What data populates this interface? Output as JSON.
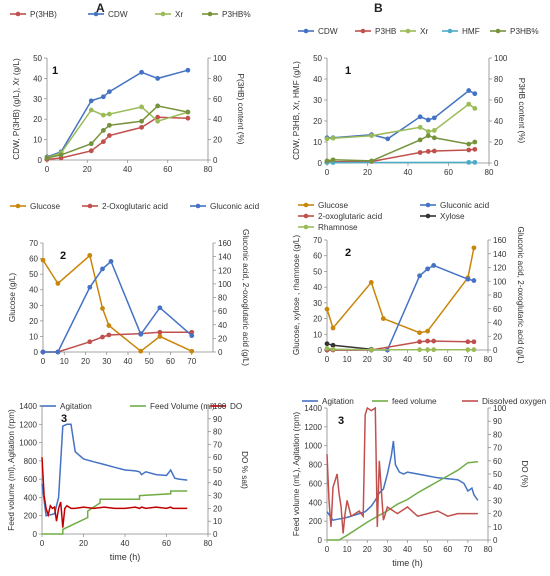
{
  "chart_data": [
    {
      "id": "A1",
      "panel_label": "A",
      "number": "1",
      "type": "line",
      "legend": [
        "P(3HB)",
        "CDW",
        "Xr",
        "P3HB%"
      ],
      "ylabel": "CDW, P(3HB) (g/L),  Xr (g/L)",
      "y2label": "P(3HB) content (%)",
      "xlabel": "",
      "xlim": [
        0,
        80
      ],
      "xticks": [
        0,
        20,
        40,
        60,
        80
      ],
      "ylim": [
        0,
        50
      ],
      "yticks": [
        0,
        10,
        20,
        30,
        40,
        50
      ],
      "y2lim": [
        0,
        100
      ],
      "y2ticks": [
        0,
        20,
        40,
        60,
        80,
        100
      ],
      "series": [
        {
          "name": "P(3HB)",
          "color": "#c0504d",
          "axis": "left",
          "x": [
            0,
            7,
            22,
            28,
            31,
            47,
            55,
            70
          ],
          "y": [
            0.3,
            1,
            4.5,
            9,
            12,
            16,
            21,
            20.5
          ]
        },
        {
          "name": "CDW",
          "color": "#4472c4",
          "axis": "left",
          "x": [
            0,
            7,
            22,
            28,
            31,
            47,
            55,
            70
          ],
          "y": [
            1.5,
            4,
            29,
            31,
            33.5,
            43,
            40,
            44
          ]
        },
        {
          "name": "Xr",
          "color": "#9bbb59",
          "axis": "left",
          "x": [
            0,
            7,
            22,
            28,
            31,
            47,
            55,
            70
          ],
          "y": [
            1.2,
            3.5,
            24.5,
            22,
            22.5,
            26,
            19,
            23.5
          ]
        },
        {
          "name": "P3HB%",
          "color": "#76933c",
          "axis": "right",
          "x": [
            0,
            7,
            22,
            28,
            31,
            47,
            55,
            70
          ],
          "y": [
            2,
            5,
            16,
            29,
            34,
            38,
            53,
            47
          ]
        }
      ]
    },
    {
      "id": "B1",
      "panel_label": "B",
      "number": "1",
      "type": "line",
      "legend": [
        "CDW",
        "P3HB",
        "Xr",
        "HMF",
        "P3HB%"
      ],
      "ylabel": "CDW, P3HB, Xr, HMF (g/L)",
      "y2label": "P3HB content (%)",
      "xlabel": "",
      "xlim": [
        0,
        80
      ],
      "xticks": [
        0,
        20,
        40,
        60,
        80
      ],
      "ylim": [
        0,
        50
      ],
      "yticks": [
        0,
        10,
        20,
        30,
        40,
        50
      ],
      "y2lim": [
        0,
        100
      ],
      "y2ticks": [
        0,
        20,
        40,
        60,
        80,
        100
      ],
      "series": [
        {
          "name": "CDW",
          "color": "#4472c4",
          "axis": "left",
          "x": [
            0,
            3,
            22,
            30,
            46,
            50,
            53,
            70,
            73
          ],
          "y": [
            12,
            12,
            13.5,
            11.5,
            22,
            20.5,
            21.5,
            34.5,
            33
          ]
        },
        {
          "name": "P3HB",
          "color": "#c0504d",
          "axis": "left",
          "x": [
            0,
            3,
            22,
            46,
            50,
            53,
            70,
            73
          ],
          "y": [
            0.5,
            0.6,
            0.7,
            5,
            5.5,
            5.7,
            6.2,
            6.5
          ]
        },
        {
          "name": "Xr",
          "color": "#9bbb59",
          "axis": "left",
          "x": [
            0,
            3,
            22,
            46,
            50,
            53,
            70,
            73
          ],
          "y": [
            11.5,
            11.8,
            13,
            17,
            15,
            15.5,
            28,
            26
          ]
        },
        {
          "name": "HMF",
          "color": "#4bacc6",
          "axis": "left",
          "x": [
            0,
            3,
            70,
            73
          ],
          "y": [
            0.2,
            0.2,
            0.3,
            0.3
          ]
        },
        {
          "name": "P3HB%",
          "color": "#76933c",
          "axis": "right",
          "x": [
            0,
            3,
            22,
            46,
            50,
            53,
            70,
            73
          ],
          "y": [
            2,
            3,
            2,
            22,
            26,
            24,
            18,
            20
          ]
        }
      ]
    },
    {
      "id": "A2",
      "panel_label": "",
      "number": "2",
      "type": "line",
      "legend": [
        "Glucose",
        "2-Oxoglutaric acid",
        "Gluconic acid"
      ],
      "ylabel": "Glucose (g/L)",
      "y2label": "Gluconic acid, 2-oxoglutaric acid (g/L)",
      "xlabel": "",
      "xlim": [
        0,
        80
      ],
      "xticks": [
        0,
        10,
        20,
        30,
        40,
        50,
        60,
        70
      ],
      "ylim": [
        0,
        70
      ],
      "yticks": [
        0,
        10,
        20,
        30,
        40,
        50,
        60,
        70
      ],
      "y2lim": [
        0,
        160
      ],
      "y2ticks": [
        0,
        20,
        40,
        60,
        80,
        100,
        120,
        140,
        160
      ],
      "series": [
        {
          "name": "Glucose",
          "color": "#c8860a",
          "axis": "left",
          "x": [
            0,
            7,
            22,
            28,
            31,
            46,
            55,
            70
          ],
          "y": [
            59,
            44,
            62,
            28,
            17,
            0.5,
            10,
            0.5
          ]
        },
        {
          "name": "2-Oxoglutaric acid",
          "color": "#c0504d",
          "axis": "right",
          "x": [
            0,
            7,
            22,
            28,
            31,
            46,
            55,
            70
          ],
          "y": [
            0,
            0,
            15,
            22,
            25,
            27,
            29,
            29
          ]
        },
        {
          "name": "Gluconic acid",
          "color": "#4472c4",
          "axis": "right",
          "x": [
            0,
            7,
            22,
            28,
            32,
            46,
            55,
            70
          ],
          "y": [
            0,
            0,
            95,
            122,
            133,
            26,
            65,
            24
          ]
        }
      ]
    },
    {
      "id": "B2",
      "panel_label": "",
      "number": "2",
      "type": "line",
      "legend": [
        "Glucose",
        "Gluconic acid",
        "2-oxoglutaric acid",
        "Xylose",
        "Rhamnose"
      ],
      "ylabel": "Glucose, xylose , rhamnose (g/L)",
      "y2label": "Gluconic acid, 2-oxoglutaric acid (g/L)",
      "xlabel": "",
      "xlim": [
        0,
        80
      ],
      "xticks": [
        0,
        10,
        20,
        30,
        40,
        50,
        60,
        70,
        80
      ],
      "ylim": [
        0,
        70
      ],
      "yticks": [
        0,
        10,
        20,
        30,
        40,
        50,
        60,
        70
      ],
      "y2lim": [
        0,
        160
      ],
      "y2ticks": [
        0,
        20,
        40,
        60,
        80,
        100,
        120,
        140,
        160
      ],
      "series": [
        {
          "name": "Glucose",
          "color": "#c8860a",
          "axis": "left",
          "x": [
            0,
            3,
            22,
            28,
            46,
            50,
            70,
            73
          ],
          "y": [
            26,
            14,
            43,
            20,
            11,
            12,
            46,
            65
          ]
        },
        {
          "name": "Gluconic acid",
          "color": "#4472c4",
          "axis": "right",
          "x": [
            0,
            22,
            30,
            46,
            50,
            53,
            70,
            73
          ],
          "y": [
            0,
            0,
            0,
            108,
            118,
            123,
            103,
            101
          ]
        },
        {
          "name": "2-oxoglutaric acid",
          "color": "#c0504d",
          "axis": "right",
          "x": [
            0,
            3,
            22,
            46,
            50,
            53,
            70,
            73
          ],
          "y": [
            0,
            0,
            0,
            12,
            13,
            13,
            12,
            12
          ]
        },
        {
          "name": "Xylose",
          "color": "#333333",
          "axis": "left",
          "x": [
            0,
            3,
            22
          ],
          "y": [
            4,
            3,
            0.5
          ]
        },
        {
          "name": "Rhamnose",
          "color": "#9bbb59",
          "axis": "left",
          "x": [
            0,
            3,
            22,
            46,
            50,
            53,
            70,
            73
          ],
          "y": [
            1,
            0.5,
            0.2,
            0.2,
            0.2,
            0.2,
            0.2,
            0.2
          ]
        }
      ]
    },
    {
      "id": "A3",
      "panel_label": "",
      "number": "3",
      "type": "line",
      "legend": [
        "Agitation",
        "Feed Volume (ml)",
        "DO"
      ],
      "ylabel": "Feed volume (ml), Agitation (rpm)",
      "y2label": "DO % sat)",
      "xlabel": "time (h)",
      "xlim": [
        0,
        80
      ],
      "xticks": [
        0,
        20,
        40,
        60,
        80
      ],
      "ylim": [
        0,
        1400
      ],
      "yticks": [
        0,
        200,
        400,
        600,
        800,
        1000,
        1200,
        1400
      ],
      "y2lim": [
        0,
        100
      ],
      "y2ticks": [
        0,
        10,
        20,
        30,
        40,
        50,
        60,
        70,
        80,
        90,
        100
      ],
      "series": [
        {
          "name": "Agitation",
          "color": "#4472c4",
          "axis": "left",
          "x": [
            0,
            2,
            6,
            8,
            10,
            12,
            14,
            16,
            20,
            25,
            30,
            35,
            40,
            45,
            47,
            48,
            50,
            55,
            60,
            62,
            64,
            66,
            70
          ],
          "y": [
            550,
            200,
            220,
            400,
            1180,
            1200,
            1200,
            900,
            820,
            790,
            760,
            730,
            700,
            690,
            680,
            650,
            680,
            650,
            640,
            700,
            610,
            600,
            590
          ]
        },
        {
          "name": "Feed Volume (ml)",
          "color": "#70ad47",
          "axis": "left",
          "x": [
            0,
            10,
            10,
            22,
            22,
            28,
            28,
            47,
            47,
            62,
            62,
            70
          ],
          "y": [
            0,
            0,
            50,
            180,
            250,
            340,
            380,
            380,
            420,
            440,
            470,
            470
          ]
        },
        {
          "name": "DO",
          "color": "#c00000",
          "axis": "right",
          "x": [
            0,
            1,
            2,
            3,
            4,
            5,
            6,
            7,
            8,
            9,
            10,
            11,
            12,
            14,
            16,
            20,
            25,
            30,
            35,
            40,
            45,
            47,
            48,
            50,
            55,
            60,
            62,
            63,
            65,
            70
          ],
          "y": [
            60,
            30,
            20,
            15,
            22,
            20,
            21,
            10,
            20,
            25,
            5,
            20,
            22,
            20,
            20,
            21,
            20,
            21,
            20,
            20,
            21,
            20,
            21,
            20,
            21,
            20,
            21,
            20,
            20,
            20
          ]
        }
      ]
    },
    {
      "id": "B3",
      "panel_label": "",
      "number": "3",
      "type": "line",
      "legend": [
        "Agitation",
        "feed volume",
        "Dissolved oxygen"
      ],
      "ylabel": "Feed volume (mL), Agitation (rpm)",
      "y2label": "DO (%)",
      "xlabel": "time (h)",
      "xlim": [
        0,
        80
      ],
      "xticks": [
        0,
        10,
        20,
        30,
        40,
        50,
        60,
        70,
        80
      ],
      "ylim": [
        0,
        1400
      ],
      "yticks": [
        0,
        200,
        400,
        600,
        800,
        1000,
        1200,
        1400
      ],
      "y2lim": [
        0,
        100
      ],
      "y2ticks": [
        0,
        10,
        20,
        30,
        40,
        50,
        60,
        70,
        80,
        90,
        100
      ],
      "series": [
        {
          "name": "Agitation",
          "color": "#4472c4",
          "axis": "left",
          "x": [
            0,
            3,
            5,
            8,
            10,
            13,
            16,
            19,
            20,
            22,
            24,
            26,
            28,
            30,
            32,
            33,
            34,
            36,
            38,
            40,
            45,
            50,
            55,
            60,
            65,
            68,
            70,
            72,
            73,
            75
          ],
          "y": [
            300,
            210,
            220,
            230,
            240,
            260,
            280,
            300,
            320,
            360,
            420,
            500,
            540,
            700,
            900,
            1050,
            800,
            720,
            700,
            720,
            700,
            680,
            660,
            650,
            640,
            600,
            520,
            550,
            480,
            420
          ]
        },
        {
          "name": "feed volume",
          "color": "#70ad47",
          "axis": "left",
          "x": [
            0,
            6,
            10,
            15,
            20,
            25,
            30,
            35,
            40,
            45,
            50,
            55,
            60,
            65,
            70,
            75
          ],
          "y": [
            0,
            0,
            50,
            120,
            190,
            250,
            310,
            380,
            430,
            500,
            560,
            620,
            680,
            740,
            820,
            830
          ]
        },
        {
          "name": "Dissolved oxygen",
          "color": "#c0504d",
          "axis": "right",
          "x": [
            0,
            1,
            2,
            3,
            4,
            5,
            6,
            7,
            8,
            9,
            10,
            12,
            14,
            16,
            18,
            19,
            20,
            22,
            24,
            25,
            26,
            28,
            30,
            35,
            40,
            45,
            50,
            55,
            60,
            65,
            70,
            75
          ],
          "y": [
            65,
            30,
            10,
            40,
            45,
            50,
            35,
            25,
            5,
            20,
            30,
            18,
            20,
            22,
            18,
            95,
            100,
            98,
            100,
            10,
            60,
            15,
            25,
            20,
            25,
            18,
            20,
            22,
            18,
            20,
            20,
            20
          ]
        }
      ]
    }
  ]
}
